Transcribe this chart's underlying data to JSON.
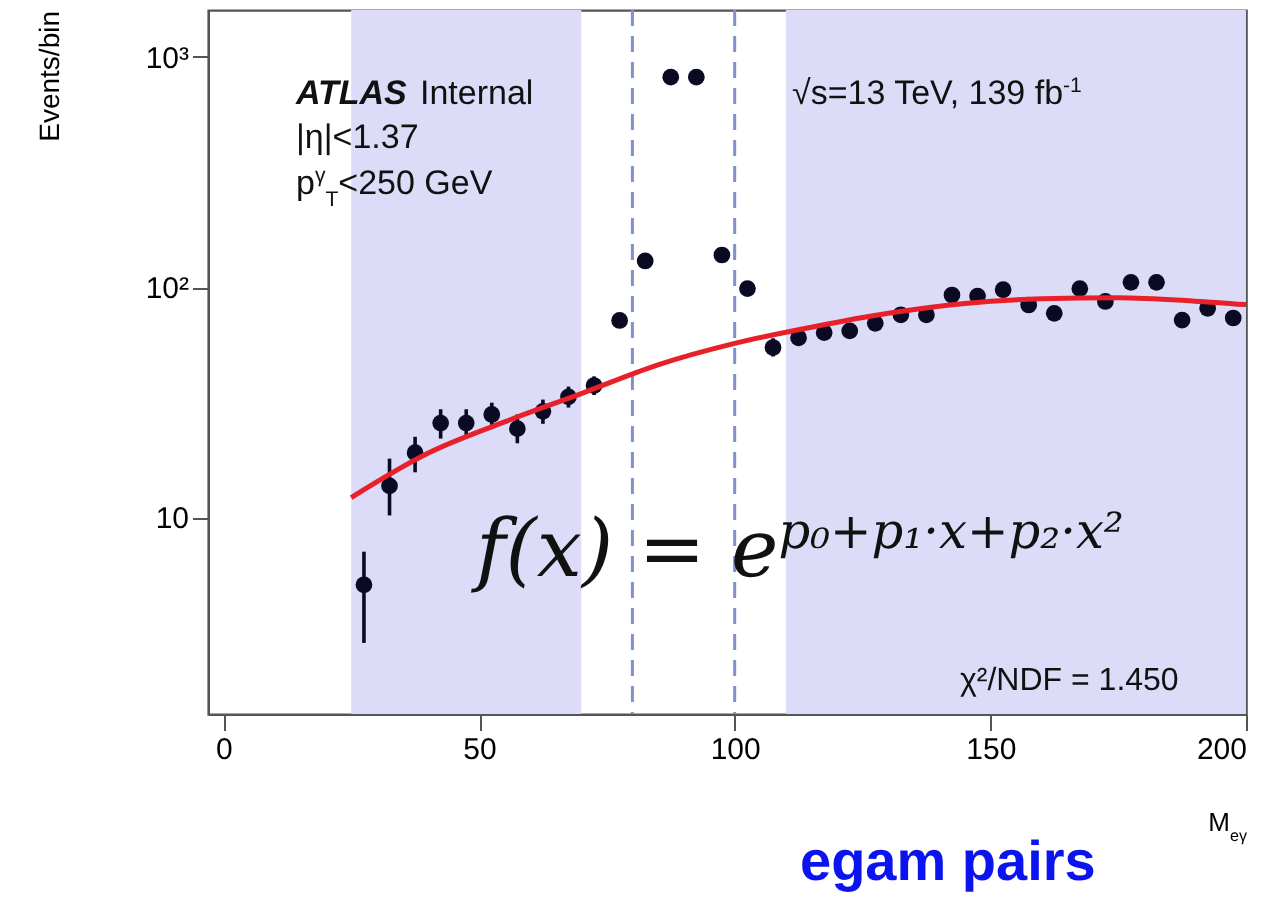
{
  "chart_data": {
    "type": "scatter",
    "xlabel": "M$_{eγ}$",
    "ylabel": "Events/bin",
    "xlim": [
      -3,
      200
    ],
    "xticks": [
      0,
      50,
      100,
      150,
      200
    ],
    "ylim": [
      1.4,
      1600
    ],
    "yticks": [
      10,
      {
        "value": 100,
        "label": "10²"
      },
      {
        "value": 1000,
        "label": "10³"
      }
    ],
    "log": "y",
    "grid": false,
    "x": [
      27.5,
      32.5,
      37.5,
      42.5,
      47.5,
      52.5,
      57.5,
      62.5,
      67.5,
      72.5,
      77.5,
      82.5,
      87.5,
      92.5,
      97.5,
      102.5,
      107.5,
      112.5,
      117.5,
      122.5,
      127.5,
      132.5,
      137.5,
      142.5,
      147.5,
      152.5,
      157.5,
      162.5,
      167.5,
      172.5,
      177.5,
      182.5,
      187.5,
      192.5,
      197.5
    ],
    "series": [
      {
        "color": "#0a0a23",
        "marker": "circle",
        "values": [
          5.1,
          13.7,
          19.1,
          25.7,
          25.7,
          28,
          24.3,
          28.9,
          33.4,
          37.4,
          71.7,
          130,
          817,
          817,
          138,
          98.6,
          54.7,
          60.3,
          63.5,
          64.6,
          69.7,
          75.9,
          75.9,
          92.5,
          91.5,
          97.5,
          83.7,
          77,
          98.6,
          86.7,
          105,
          105,
          72,
          81,
          73.5
        ],
        "errors": [
          [
            2.85,
            7.1
          ],
          [
            10.2,
            18
          ],
          [
            15.7,
            22.4
          ],
          [
            22,
            29.5
          ],
          [
            22,
            29.5
          ],
          [
            24.5,
            31.5
          ],
          [
            21,
            28
          ],
          [
            25.5,
            32.5
          ],
          [
            30,
            37
          ],
          [
            34,
            41
          ],
          null,
          null,
          null,
          null,
          null,
          null,
          [
            50,
            60
          ],
          null,
          null,
          null,
          null,
          null,
          null,
          null,
          null,
          null,
          null,
          null,
          null,
          null,
          null,
          null,
          null,
          null,
          null
        ]
      },
      {
        "type": "line",
        "color": "#e8202a",
        "x": [
          25,
          40,
          55,
          70,
          85,
          100,
          115,
          130,
          145,
          160,
          175,
          190,
          200
        ],
        "values": [
          12.2,
          19,
          26,
          34.5,
          46,
          57,
          67,
          77,
          85,
          89,
          90,
          87,
          84
        ]
      }
    ],
    "bands": [
      {
        "axis": "x",
        "from": 25,
        "to": 70,
        "color": "#dcdcf8"
      },
      {
        "axis": "x",
        "from": 110,
        "to": 200,
        "color": "#dcdcf8"
      }
    ],
    "ref_lines": [
      {
        "axis": "x",
        "value": 80,
        "color": "#7f8fd0",
        "line_style": "dashed"
      },
      {
        "axis": "x",
        "value": 100,
        "color": "#7f8fd0",
        "line_style": "dashed"
      }
    ],
    "annotations": [
      "ATLAS",
      "Internal",
      "|η|<1.37",
      "p$^{γ}$$_{T}$<250 GeV",
      "√s=13 TeV, 139 fb$^{-1}$",
      "f(x) = e$^{p₀+p₁·x+p₂·x²}$",
      "χ²/NDF = 1.450",
      "egam pairs"
    ]
  }
}
